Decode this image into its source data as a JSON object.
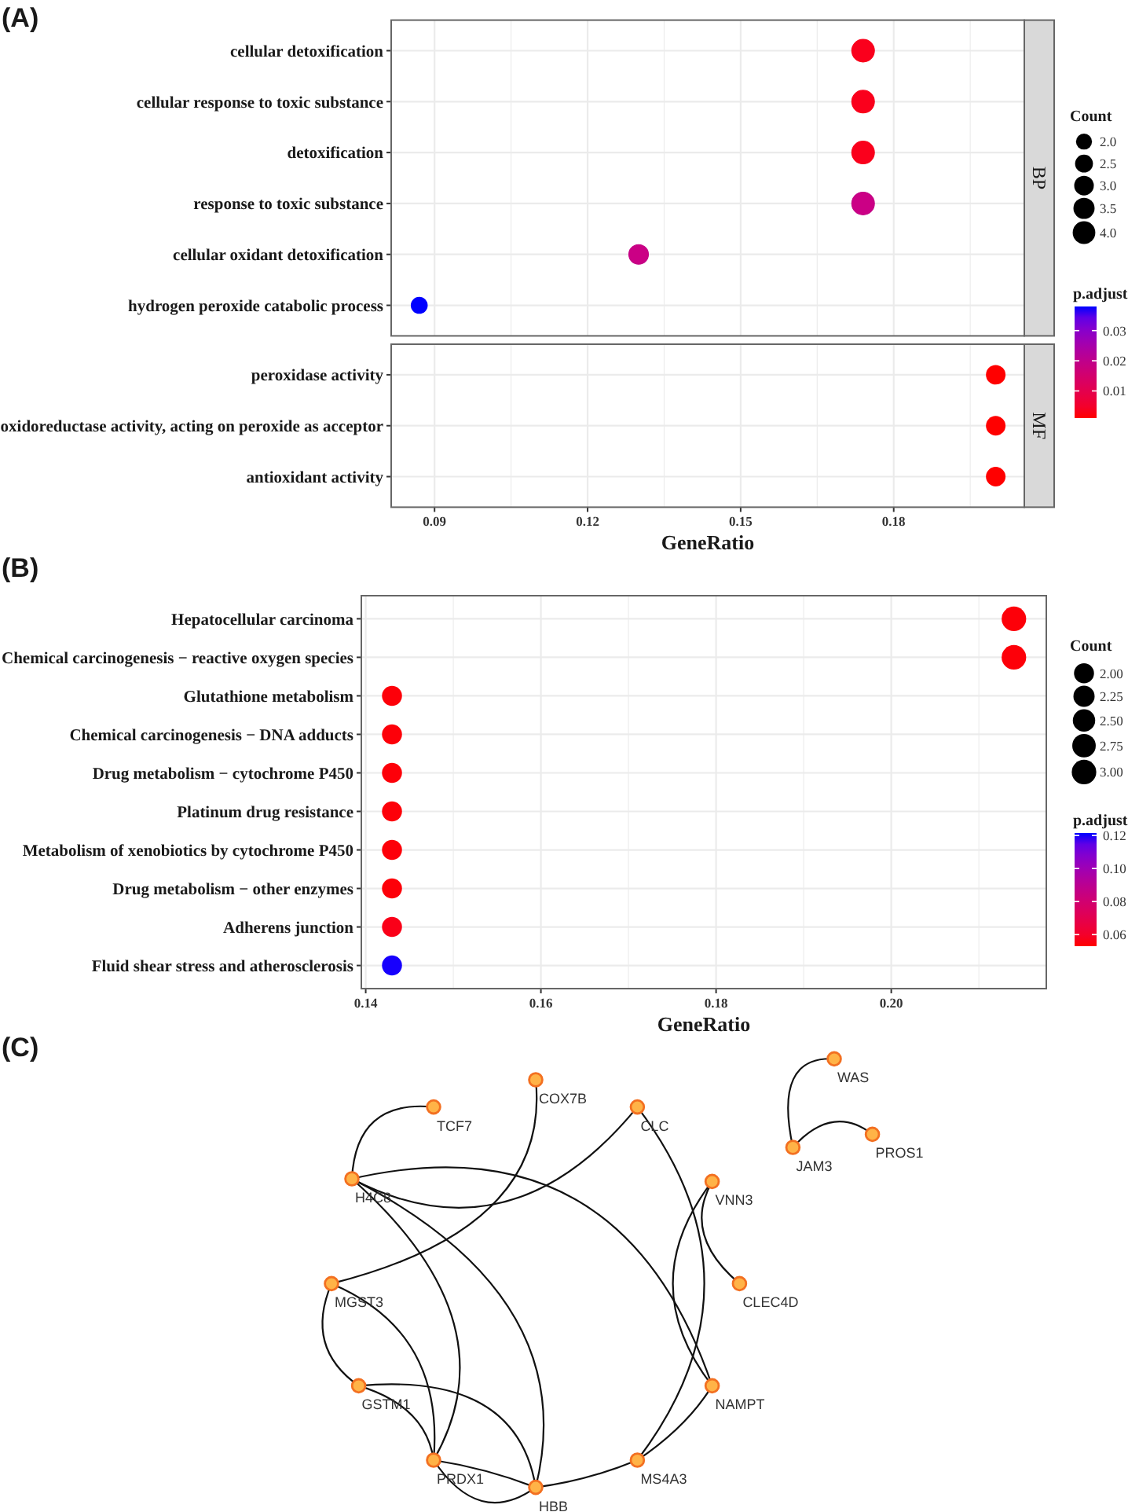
{
  "chart_data": [
    {
      "type": "bubble",
      "annotations": [
        "(A)"
      ],
      "orientation": "horizontal",
      "categories": [
        "cellular detoxification",
        "cellular response to toxic substance",
        "detoxification",
        "response to toxic substance",
        "cellular oxidant detoxification",
        "hydrogen peroxide catabolic process",
        "peroxidase activity",
        "oxidoreductase activity, acting on peroxide as acceptor",
        "antioxidant activity"
      ],
      "series": [
        {
          "name": "BP",
          "values": [
            0.174,
            0.174,
            0.174,
            0.174,
            0.13,
            0.087,
            null,
            null,
            null
          ],
          "sizes": [
            4,
            4,
            4,
            4,
            3,
            2,
            null,
            null,
            null
          ],
          "cvalues": [
            0.003,
            0.003,
            0.003,
            0.019,
            0.019,
            0.038,
            null,
            null,
            null
          ],
          "colors": [
            "#fa001c",
            "#fa001c",
            "#fa001c",
            "#cb0085",
            "#cb0085",
            "#0000ff",
            null,
            null,
            null
          ]
        },
        {
          "name": "MF",
          "values": [
            null,
            null,
            null,
            null,
            null,
            null,
            0.2,
            0.2,
            0.2
          ],
          "sizes": [
            null,
            null,
            null,
            null,
            null,
            null,
            3,
            3,
            3
          ],
          "cvalues": [
            null,
            null,
            null,
            null,
            null,
            null,
            0.001,
            0.001,
            0.001
          ]
        }
      ],
      "xlim": [
        0.0815,
        0.2056
      ],
      "xticks": [
        0.09,
        {
          "value": 0.105,
          "label": null
        },
        0.12,
        {
          "value": 0.135,
          "label": null
        },
        0.15,
        {
          "value": 0.165,
          "label": null
        },
        0.18,
        {
          "value": 0.195,
          "label": null
        }
      ],
      "xlabel": "GeneRatio",
      "grid": true,
      "legend_title": "Count",
      "size_legend": [
        {
          "value": 2,
          "label": "2.0"
        },
        2.5,
        {
          "value": 3,
          "label": "3.0"
        },
        3.5,
        {
          "value": 4,
          "label": "4.0"
        }
      ],
      "clabel": "p.adjust",
      "clim": [
        0.001,
        0.038
      ],
      "cticks": [
        0.01,
        0.02,
        0.03
      ]
    },
    {
      "type": "bubble",
      "annotations": [
        "(B)"
      ],
      "orientation": "horizontal",
      "categories": [
        "Hepatocellular carcinoma",
        "Chemical carcinogenesis − reactive oxygen species",
        "Glutathione metabolism",
        "Chemical carcinogenesis − DNA adducts",
        "Drug metabolism − cytochrome P450",
        "Platinum drug resistance",
        "Metabolism of xenobiotics by cytochrome P450",
        "Drug metabolism − other enzymes",
        "Adherens junction",
        "Fluid shear stress and atherosclerosis"
      ],
      "values": [
        0.214,
        0.214,
        0.143,
        0.143,
        0.143,
        0.143,
        0.143,
        0.143,
        0.143,
        0.143
      ],
      "sizes": [
        3,
        3,
        2,
        2,
        2,
        2,
        2,
        2,
        2,
        2
      ],
      "cvalues": [
        0.054,
        0.054,
        0.054,
        0.054,
        0.054,
        0.054,
        0.054,
        0.054,
        0.056,
        0.121
      ],
      "xlim": [
        0.1395,
        0.2177
      ],
      "xticks": [
        0.14,
        {
          "value": 0.15,
          "label": null
        },
        0.16,
        {
          "value": 0.17,
          "label": null
        },
        0.18,
        {
          "value": 0.19,
          "label": null
        },
        {
          "value": 0.2,
          "label": "0.20"
        },
        {
          "value": 0.21,
          "label": null
        }
      ],
      "xlabel": "GeneRatio",
      "grid": true,
      "legend_title": "Count",
      "size_legend": [
        {
          "value": 2,
          "label": "2.00"
        },
        2.25,
        {
          "value": 2.5,
          "label": "2.50"
        },
        2.75,
        {
          "value": 3,
          "label": "3.00"
        }
      ],
      "clabel": "p.adjust",
      "clim": [
        0.053,
        0.1215
      ],
      "cticks": [
        0.06,
        0.08,
        {
          "value": 0.1,
          "label": "0.10"
        },
        0.12
      ]
    },
    {
      "type": "other",
      "annotations": [
        "(C)",
        "TCF7",
        "COX7B",
        "CLC",
        "WAS",
        "H4C8",
        "JAM3",
        "PROS1",
        "VNN3",
        "MGST3",
        "CLEC4D",
        "GSTM1",
        "NAMPT",
        "PRDX1",
        "MS4A3",
        "HBB"
      ]
    }
  ]
}
